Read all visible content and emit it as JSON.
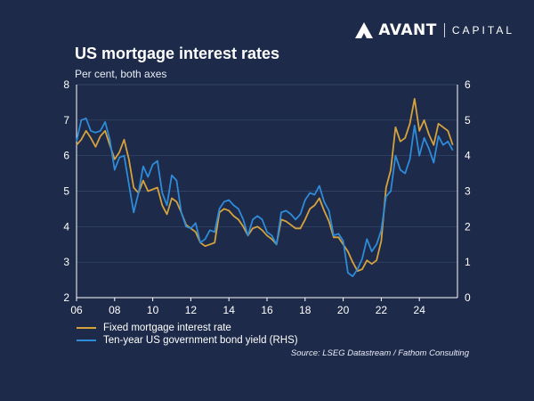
{
  "brand": {
    "name": "AVANT",
    "suffix": "CAPITAL"
  },
  "chart_data": {
    "type": "line",
    "title": "US mortgage interest rates",
    "subtitle": "Per cent, both axes",
    "x_range": [
      2006,
      2026
    ],
    "x_ticks": [
      2006,
      2008,
      2010,
      2012,
      2014,
      2016,
      2018,
      2020,
      2022,
      2024
    ],
    "x_tick_labels": [
      "06",
      "08",
      "10",
      "12",
      "14",
      "16",
      "18",
      "20",
      "22",
      "24"
    ],
    "y_left": {
      "range": [
        2,
        8
      ],
      "ticks": [
        2,
        3,
        4,
        5,
        6,
        7,
        8
      ]
    },
    "y_right": {
      "range": [
        0,
        6
      ],
      "ticks": [
        0,
        1,
        2,
        3,
        4,
        5,
        6
      ]
    },
    "grid": true,
    "legend_position": "bottom-left",
    "series": [
      {
        "name": "Fixed mortgage interest rate",
        "axis": "left",
        "color": "#d6a23c",
        "x": [
          2006.0,
          2006.25,
          2006.5,
          2006.75,
          2007.0,
          2007.25,
          2007.5,
          2007.75,
          2008.0,
          2008.25,
          2008.5,
          2008.75,
          2009.0,
          2009.25,
          2009.5,
          2009.75,
          2010.0,
          2010.25,
          2010.5,
          2010.75,
          2011.0,
          2011.25,
          2011.5,
          2011.75,
          2012.0,
          2012.25,
          2012.5,
          2012.75,
          2013.0,
          2013.25,
          2013.5,
          2013.75,
          2014.0,
          2014.25,
          2014.5,
          2014.75,
          2015.0,
          2015.25,
          2015.5,
          2015.75,
          2016.0,
          2016.25,
          2016.5,
          2016.75,
          2017.0,
          2017.25,
          2017.5,
          2017.75,
          2018.0,
          2018.25,
          2018.5,
          2018.75,
          2019.0,
          2019.25,
          2019.5,
          2019.75,
          2020.0,
          2020.25,
          2020.5,
          2020.75,
          2021.0,
          2021.25,
          2021.5,
          2021.75,
          2022.0,
          2022.25,
          2022.5,
          2022.75,
          2023.0,
          2023.25,
          2023.5,
          2023.75,
          2024.0,
          2024.25,
          2024.5,
          2024.75,
          2025.0,
          2025.25,
          2025.5,
          2025.75
        ],
        "values": [
          6.3,
          6.45,
          6.7,
          6.5,
          6.25,
          6.55,
          6.7,
          6.3,
          5.9,
          6.1,
          6.45,
          5.9,
          5.1,
          4.95,
          5.3,
          5.0,
          5.05,
          5.1,
          4.6,
          4.35,
          4.8,
          4.7,
          4.4,
          4.05,
          3.95,
          3.85,
          3.55,
          3.45,
          3.5,
          3.55,
          4.4,
          4.5,
          4.45,
          4.3,
          4.2,
          4.0,
          3.75,
          3.95,
          4.0,
          3.9,
          3.75,
          3.65,
          3.5,
          4.2,
          4.15,
          4.05,
          3.95,
          3.95,
          4.2,
          4.5,
          4.6,
          4.8,
          4.45,
          4.15,
          3.7,
          3.7,
          3.5,
          3.3,
          3.0,
          2.75,
          2.8,
          3.05,
          2.95,
          3.05,
          3.6,
          5.1,
          5.6,
          6.8,
          6.4,
          6.5,
          6.9,
          7.6,
          6.7,
          7.0,
          6.6,
          6.3,
          6.9,
          6.8,
          6.7,
          6.3
        ]
      },
      {
        "name": "Ten-year US government bond yield (RHS)",
        "axis": "right",
        "color": "#2e8bd8",
        "x": [
          2006.0,
          2006.25,
          2006.5,
          2006.75,
          2007.0,
          2007.25,
          2007.5,
          2007.75,
          2008.0,
          2008.25,
          2008.5,
          2008.75,
          2009.0,
          2009.25,
          2009.5,
          2009.75,
          2010.0,
          2010.25,
          2010.5,
          2010.75,
          2011.0,
          2011.25,
          2011.5,
          2011.75,
          2012.0,
          2012.25,
          2012.5,
          2012.75,
          2013.0,
          2013.25,
          2013.5,
          2013.75,
          2014.0,
          2014.25,
          2014.5,
          2014.75,
          2015.0,
          2015.25,
          2015.5,
          2015.75,
          2016.0,
          2016.25,
          2016.5,
          2016.75,
          2017.0,
          2017.25,
          2017.5,
          2017.75,
          2018.0,
          2018.25,
          2018.5,
          2018.75,
          2019.0,
          2019.25,
          2019.5,
          2019.75,
          2020.0,
          2020.25,
          2020.5,
          2020.75,
          2021.0,
          2021.25,
          2021.5,
          2021.75,
          2022.0,
          2022.25,
          2022.5,
          2022.75,
          2023.0,
          2023.25,
          2023.5,
          2023.75,
          2024.0,
          2024.25,
          2024.5,
          2024.75,
          2025.0,
          2025.25,
          2025.5,
          2025.75
        ],
        "values": [
          4.4,
          5.0,
          5.05,
          4.7,
          4.65,
          4.7,
          4.95,
          4.45,
          3.6,
          3.95,
          4.0,
          3.2,
          2.4,
          2.95,
          3.7,
          3.4,
          3.75,
          3.85,
          2.95,
          2.6,
          3.45,
          3.3,
          2.4,
          2.0,
          1.95,
          2.1,
          1.55,
          1.65,
          1.9,
          1.85,
          2.5,
          2.7,
          2.75,
          2.6,
          2.5,
          2.2,
          1.75,
          2.2,
          2.3,
          2.2,
          1.85,
          1.75,
          1.5,
          2.4,
          2.45,
          2.35,
          2.2,
          2.35,
          2.75,
          2.95,
          2.9,
          3.15,
          2.7,
          2.45,
          1.75,
          1.8,
          1.6,
          0.7,
          0.6,
          0.8,
          1.1,
          1.65,
          1.3,
          1.5,
          1.9,
          2.85,
          3.0,
          4.0,
          3.6,
          3.5,
          3.9,
          4.85,
          4.0,
          4.5,
          4.2,
          3.8,
          4.55,
          4.3,
          4.4,
          4.15
        ]
      }
    ],
    "source": "Source: LSEG Datastream / Fathom Consulting"
  }
}
